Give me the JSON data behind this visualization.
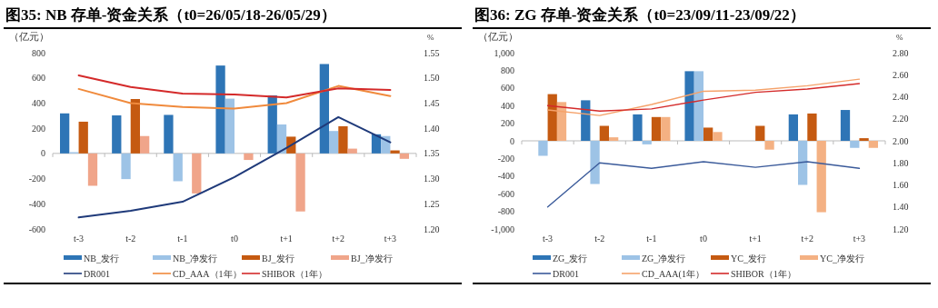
{
  "chart_data": [
    {
      "type": "bar",
      "title": "图35:  NB 存单-资金关系（t0=26/05/18-26/05/29）",
      "ylabel": "（亿元）",
      "y2label": "%",
      "legend": "bottom",
      "categories": [
        "t-3",
        "t-2",
        "t-1",
        "t0",
        "t+1",
        "t+2",
        "t+3"
      ],
      "ylim": [
        -600,
        800
      ],
      "yticks": [
        -600,
        -400,
        -200,
        0,
        200,
        400,
        600,
        800
      ],
      "y2lim": [
        1.2,
        1.55
      ],
      "y2ticks": [
        {
          "value": 1.2,
          "label": "1.20"
        },
        {
          "value": 1.25,
          "label": "1.25"
        },
        {
          "value": 1.3,
          "label": "1.30"
        },
        {
          "value": 1.35,
          "label": "1.35"
        },
        {
          "value": 1.4,
          "label": "1.40"
        },
        {
          "value": 1.45,
          "label": "1.45"
        },
        {
          "value": 1.5,
          "label": "1.50"
        },
        {
          "value": 1.55,
          "label": "1.55"
        }
      ],
      "series": [
        {
          "name": "NB_发行",
          "color": "#2e75b6",
          "values": [
            318,
            302,
            306,
            698,
            461,
            710,
            152
          ]
        },
        {
          "name": "NB_净发行",
          "color": "#9dc3e6",
          "values": [
            10,
            -204,
            -221,
            435,
            230,
            178,
            138
          ]
        },
        {
          "name": "BJ_发行",
          "color": "#c55a11",
          "values": [
            252,
            432,
            null,
            null,
            133,
            216,
            24
          ]
        },
        {
          "name": "BJ_净发行",
          "color": "#f0a58a",
          "values": [
            -257,
            138,
            -318,
            -52,
            -461,
            38,
            -43
          ]
        },
        {
          "name": "DR001",
          "type": "line",
          "axis": "y2",
          "color": "#1f3a7a",
          "values": [
            1.223,
            1.236,
            1.254,
            1.303,
            1.361,
            1.422,
            1.372
          ]
        },
        {
          "name": "CD_AAA（1年）",
          "type": "line",
          "axis": "y2",
          "color": "#f08a3c",
          "values": [
            1.478,
            1.45,
            1.442,
            1.439,
            1.45,
            1.484,
            1.464
          ]
        },
        {
          "name": "SHIBOR（1年）",
          "type": "line",
          "axis": "y2",
          "color": "#d42a2a",
          "values": [
            1.505,
            1.482,
            1.469,
            1.467,
            1.461,
            1.479,
            1.476
          ]
        }
      ]
    },
    {
      "type": "bar",
      "title": "图36:  ZG 存单-资金关系（t0=23/09/11-23/09/22）",
      "ylabel": "（亿元）",
      "y2label": "%",
      "legend": "bottom",
      "categories": [
        "t-3",
        "t-2",
        "t-1",
        "t0",
        "t+1",
        "t+2",
        "t+3"
      ],
      "ylim": [
        -1000,
        1000
      ],
      "yticks": [
        {
          "value": -1000,
          "label": "-1,000"
        },
        -800,
        -600,
        -400,
        -200,
        0,
        200,
        400,
        600,
        800,
        {
          "value": 1000,
          "label": "1,000"
        }
      ],
      "y2lim": [
        1.2,
        2.8
      ],
      "y2ticks": [
        {
          "value": 1.2,
          "label": "1.20"
        },
        {
          "value": 1.4,
          "label": "1.40"
        },
        {
          "value": 1.6,
          "label": "1.60"
        },
        {
          "value": 1.8,
          "label": "1.80"
        },
        {
          "value": 2.0,
          "label": "2.00"
        },
        {
          "value": 2.2,
          "label": "2.20"
        },
        {
          "value": 2.4,
          "label": "2.40"
        },
        {
          "value": 2.6,
          "label": "2.60"
        },
        {
          "value": 2.8,
          "label": "2.80"
        }
      ],
      "series": [
        {
          "name": "ZG_发行",
          "color": "#2e75b6",
          "values": [
            null,
            460,
            300,
            790,
            null,
            300,
            350
          ]
        },
        {
          "name": "ZG_净发行",
          "color": "#9dc3e6",
          "values": [
            -170,
            -490,
            -40,
            790,
            null,
            -500,
            -80
          ]
        },
        {
          "name": "YC_发行",
          "color": "#c55a11",
          "values": [
            530,
            170,
            270,
            150,
            170,
            310,
            30
          ]
        },
        {
          "name": "YC_净发行",
          "color": "#f4b183",
          "values": [
            440,
            40,
            270,
            100,
            -100,
            -810,
            -80
          ]
        },
        {
          "name": "DR001",
          "type": "line",
          "axis": "y2",
          "color": "#3a5a9a",
          "values": [
            1.4,
            1.8,
            1.75,
            1.81,
            1.76,
            1.81,
            1.75
          ]
        },
        {
          "name": "CD_AAA(1年）",
          "type": "line",
          "axis": "y2",
          "color": "#f5a26a",
          "values": [
            2.28,
            2.23,
            2.33,
            2.45,
            2.46,
            2.5,
            2.56
          ]
        },
        {
          "name": "SHIBOR（1年）",
          "type": "line",
          "axis": "y2",
          "color": "#d42a2a",
          "values": [
            2.32,
            2.27,
            2.29,
            2.37,
            2.44,
            2.47,
            2.52
          ]
        }
      ]
    }
  ]
}
